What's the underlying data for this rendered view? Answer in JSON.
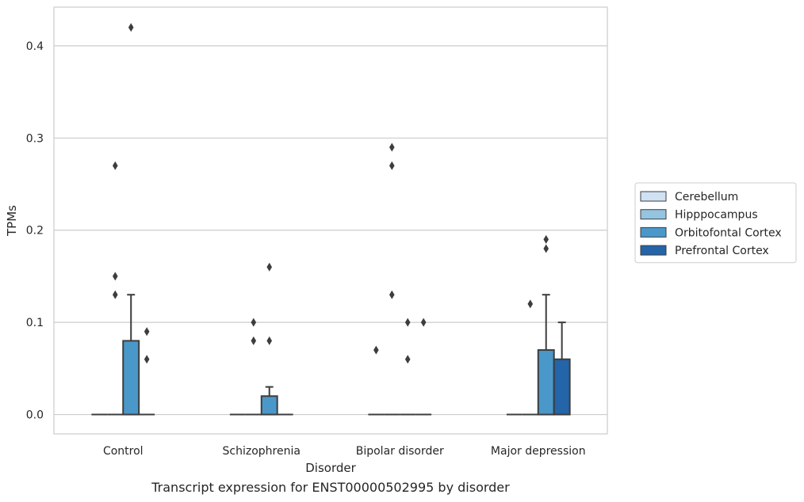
{
  "caption": "Transcript expression for ENST00000502995 by disorder",
  "chart_data": {
    "type": "box",
    "xlabel": "Disorder",
    "ylabel": "TPMs",
    "categories": [
      "Control",
      "Schizophrenia",
      "Bipolar disorder",
      "Major depression"
    ],
    "ylim": [
      -0.021,
      0.442
    ],
    "yticks": [
      0.0,
      0.1,
      0.2,
      0.3,
      0.4
    ],
    "ytick_labels": [
      "0.0",
      "0.1",
      "0.2",
      "0.3",
      "0.4"
    ],
    "grid": "horizontal",
    "legend_placement": "outside-right",
    "series": [
      {
        "name": "Cerebellum",
        "color": "#d0e1f2",
        "boxes": [
          {
            "q1": 0,
            "median": 0,
            "q3": 0,
            "whisker_low": 0,
            "whisker_high": 0,
            "outliers": []
          },
          {
            "q1": 0,
            "median": 0,
            "q3": 0,
            "whisker_low": 0,
            "whisker_high": 0,
            "outliers": []
          },
          {
            "q1": 0,
            "median": 0,
            "q3": 0,
            "whisker_low": 0,
            "whisker_high": 0,
            "outliers": [
              0.07
            ]
          },
          {
            "q1": 0,
            "median": 0,
            "q3": 0,
            "whisker_low": 0,
            "whisker_high": 0,
            "outliers": []
          }
        ]
      },
      {
        "name": "Hipppocampus",
        "color": "#94c4df",
        "boxes": [
          {
            "q1": 0,
            "median": 0,
            "q3": 0,
            "whisker_low": 0,
            "whisker_high": 0,
            "outliers": [
              0.27,
              0.15,
              0.13
            ]
          },
          {
            "q1": 0,
            "median": 0,
            "q3": 0,
            "whisker_low": 0,
            "whisker_high": 0,
            "outliers": [
              0.1,
              0.08
            ]
          },
          {
            "q1": 0,
            "median": 0,
            "q3": 0,
            "whisker_low": 0,
            "whisker_high": 0,
            "outliers": [
              0.29,
              0.27,
              0.13
            ]
          },
          {
            "q1": 0,
            "median": 0,
            "q3": 0,
            "whisker_low": 0,
            "whisker_high": 0,
            "outliers": [
              0.12
            ]
          }
        ]
      },
      {
        "name": "Orbitofontal Cortex",
        "color": "#4a98c9",
        "boxes": [
          {
            "q1": 0,
            "median": 0,
            "q3": 0.08,
            "whisker_low": 0,
            "whisker_high": 0.13,
            "outliers": [
              0.42
            ]
          },
          {
            "q1": 0,
            "median": 0,
            "q3": 0.02,
            "whisker_low": 0,
            "whisker_high": 0.03,
            "outliers": [
              0.16,
              0.08
            ]
          },
          {
            "q1": 0,
            "median": 0,
            "q3": 0,
            "whisker_low": 0,
            "whisker_high": 0,
            "outliers": [
              0.1,
              0.06
            ]
          },
          {
            "q1": 0,
            "median": 0,
            "q3": 0.07,
            "whisker_low": 0,
            "whisker_high": 0.13,
            "outliers": [
              0.19,
              0.18
            ]
          }
        ]
      },
      {
        "name": "Prefrontal Cortex",
        "color": "#2464a8",
        "boxes": [
          {
            "q1": 0,
            "median": 0,
            "q3": 0,
            "whisker_low": 0,
            "whisker_high": 0,
            "outliers": [
              0.09,
              0.06
            ]
          },
          {
            "q1": 0,
            "median": 0,
            "q3": 0,
            "whisker_low": 0,
            "whisker_high": 0,
            "outliers": []
          },
          {
            "q1": 0,
            "median": 0,
            "q3": 0,
            "whisker_low": 0,
            "whisker_high": 0,
            "outliers": [
              0.1
            ]
          },
          {
            "q1": 0,
            "median": 0,
            "q3": 0.06,
            "whisker_low": 0,
            "whisker_high": 0.1,
            "outliers": []
          }
        ]
      }
    ]
  }
}
